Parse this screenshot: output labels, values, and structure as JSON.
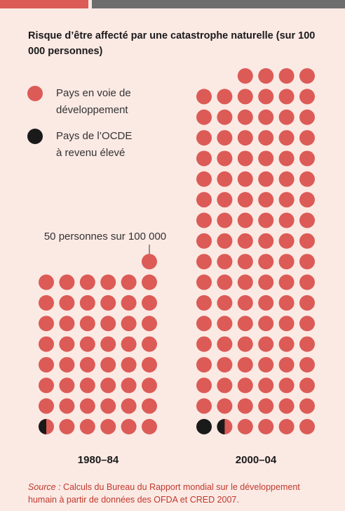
{
  "chart_data": {
    "type": "pictogram",
    "title": "Risque d’être affecté par une catastrophe naturelle (sur 100 000 personnes)",
    "categories": [
      "1980–84",
      "2000–04"
    ],
    "dot_value": 50,
    "annotation": "50 personnes sur 100 000",
    "series": [
      {
        "name": "Pays en voie de développement",
        "color": "#dc5b56",
        "values": [
          2425,
          5225
        ]
      },
      {
        "name": "Pays de l’OCDE à revenu élevé",
        "color": "#1a1a1a",
        "values": [
          25,
          75
        ]
      }
    ],
    "source_label": "Source :",
    "source_text": "Calculs du Bureau du Rapport mondial sur le développement humain à partir de données des OFDA et CRED 2007."
  }
}
